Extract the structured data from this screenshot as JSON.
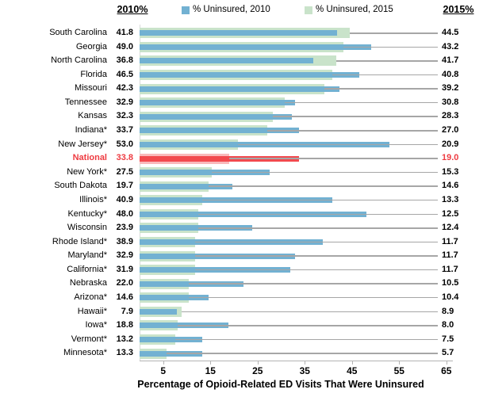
{
  "header": {
    "left_axis_label": "2010%",
    "right_axis_label": "2015%"
  },
  "legend": [
    {
      "label": "% Uninsured, 2010",
      "color": "#72b1d2"
    },
    {
      "label": "% Uninsured, 2015",
      "color": "#c9e3ca"
    }
  ],
  "colors": {
    "bar_2010": "#72b1d2",
    "bar_2015": "#c9e3ca",
    "national_bar_2010": "#f2494e",
    "national_bar_2015": "#f9b9bb",
    "national_text": "#ee3b41",
    "leader_line": "#a6a6a6",
    "axis_line": "#b3b3b3"
  },
  "chart_data": {
    "type": "bar",
    "orientation": "horizontal",
    "xlabel": "Percentage of Opioid-Related ED Visits That Were Uninsured",
    "x_ticks": [
      5,
      15,
      25,
      35,
      45,
      55,
      65
    ],
    "xlim": [
      0,
      66
    ],
    "grid": false,
    "legend_position": "top",
    "series_names": [
      "% Uninsured, 2010",
      "% Uninsured, 2015"
    ],
    "rows": [
      {
        "label": "South Carolina",
        "v2010": 41.8,
        "v2015": 44.5,
        "highlight": false
      },
      {
        "label": "Georgia",
        "v2010": 49.0,
        "v2015": 43.2,
        "highlight": false
      },
      {
        "label": "North Carolina",
        "v2010": 36.8,
        "v2015": 41.7,
        "highlight": false
      },
      {
        "label": "Florida",
        "v2010": 46.5,
        "v2015": 40.8,
        "highlight": false
      },
      {
        "label": "Missouri",
        "v2010": 42.3,
        "v2015": 39.2,
        "highlight": false
      },
      {
        "label": "Tennessee",
        "v2010": 32.9,
        "v2015": 30.8,
        "highlight": false
      },
      {
        "label": "Kansas",
        "v2010": 32.3,
        "v2015": 28.3,
        "highlight": false
      },
      {
        "label": "Indiana*",
        "v2010": 33.7,
        "v2015": 27.0,
        "highlight": false
      },
      {
        "label": "New Jersey*",
        "v2010": 53.0,
        "v2015": 20.9,
        "highlight": false
      },
      {
        "label": "National",
        "v2010": 33.8,
        "v2015": 19.0,
        "highlight": true
      },
      {
        "label": "New York*",
        "v2010": 27.5,
        "v2015": 15.3,
        "highlight": false
      },
      {
        "label": "South Dakota",
        "v2010": 19.7,
        "v2015": 14.6,
        "highlight": false
      },
      {
        "label": "Illinois*",
        "v2010": 40.9,
        "v2015": 13.3,
        "highlight": false
      },
      {
        "label": "Kentucky*",
        "v2010": 48.0,
        "v2015": 12.5,
        "highlight": false
      },
      {
        "label": "Wisconsin",
        "v2010": 23.9,
        "v2015": 12.4,
        "highlight": false
      },
      {
        "label": "Rhode Island*",
        "v2010": 38.9,
        "v2015": 11.7,
        "highlight": false
      },
      {
        "label": "Maryland*",
        "v2010": 32.9,
        "v2015": 11.7,
        "highlight": false
      },
      {
        "label": "California*",
        "v2010": 31.9,
        "v2015": 11.7,
        "highlight": false
      },
      {
        "label": "Nebraska",
        "v2010": 22.0,
        "v2015": 10.5,
        "highlight": false
      },
      {
        "label": "Arizona*",
        "v2010": 14.6,
        "v2015": 10.4,
        "highlight": false
      },
      {
        "label": "Hawaii*",
        "v2010": 7.9,
        "v2015": 8.9,
        "highlight": false
      },
      {
        "label": "Iowa*",
        "v2010": 18.8,
        "v2015": 8.0,
        "highlight": false
      },
      {
        "label": "Vermont*",
        "v2010": 13.2,
        "v2015": 7.5,
        "highlight": false
      },
      {
        "label": "Minnesota*",
        "v2010": 13.3,
        "v2015": 5.7,
        "highlight": false
      }
    ]
  }
}
